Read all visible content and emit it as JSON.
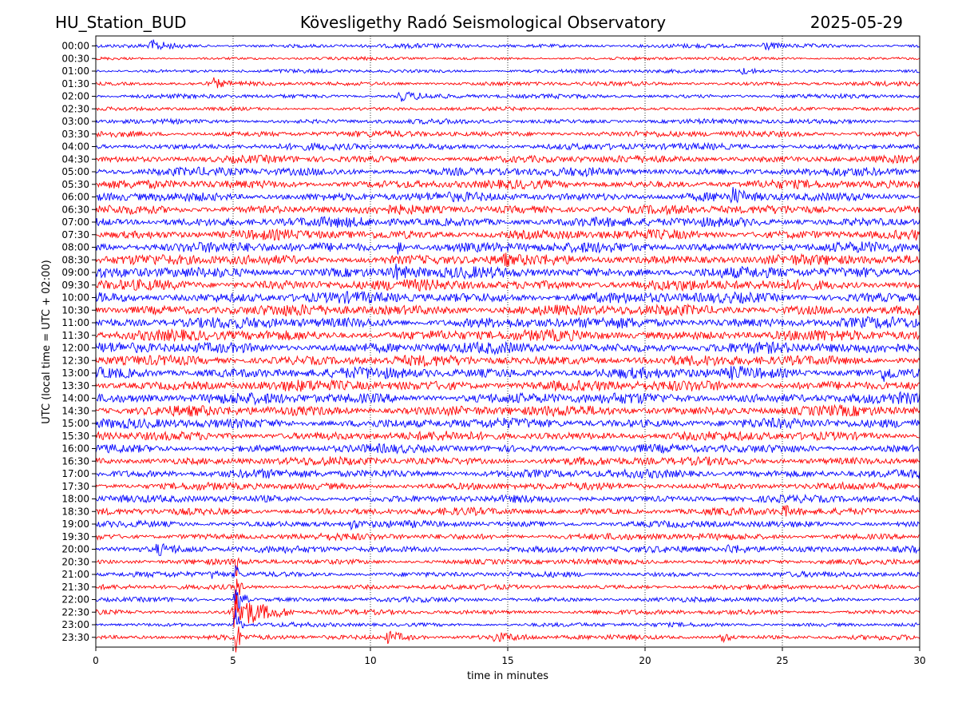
{
  "header": {
    "station": "HU_Station_BUD",
    "observatory": "Kövesligethy Radó Seismological Observatory",
    "date": "2025-05-29"
  },
  "chart_data": {
    "type": "line",
    "title": "Kövesligethy Radó Seismological Observatory",
    "xlabel": "time in minutes",
    "ylabel": "UTC (local time = UTC + 02:00)",
    "xlim": [
      0,
      30
    ],
    "xticks": [
      "0",
      "5",
      "10",
      "15",
      "20",
      "25",
      "30"
    ],
    "grid": "vertical dotted at each x tick",
    "colors": {
      "even_rows": "#0000ff",
      "odd_rows": "#ff0000"
    },
    "rows": [
      {
        "label": "00:00",
        "amplitude": 0.35,
        "events": [
          {
            "t": 2.0,
            "amp": 0.9,
            "dur": 1.2
          },
          {
            "t": 24.3,
            "amp": 0.8,
            "dur": 0.8
          }
        ]
      },
      {
        "label": "00:30",
        "amplitude": 0.25,
        "events": []
      },
      {
        "label": "01:00",
        "amplitude": 0.3,
        "events": [
          {
            "t": 23.5,
            "amp": 0.6,
            "dur": 1.5
          }
        ]
      },
      {
        "label": "01:30",
        "amplitude": 0.35,
        "events": [
          {
            "t": 4.3,
            "amp": 0.8,
            "dur": 0.6
          }
        ]
      },
      {
        "label": "02:00",
        "amplitude": 0.35,
        "events": [
          {
            "t": 11.0,
            "amp": 0.9,
            "dur": 1.8
          }
        ]
      },
      {
        "label": "02:30",
        "amplitude": 0.3,
        "events": []
      },
      {
        "label": "03:00",
        "amplitude": 0.4,
        "events": []
      },
      {
        "label": "03:30",
        "amplitude": 0.5,
        "events": []
      },
      {
        "label": "04:00",
        "amplitude": 0.55,
        "events": []
      },
      {
        "label": "04:30",
        "amplitude": 0.6,
        "events": []
      },
      {
        "label": "05:00",
        "amplitude": 0.7,
        "events": []
      },
      {
        "label": "05:30",
        "amplitude": 0.7,
        "events": []
      },
      {
        "label": "06:00",
        "amplitude": 0.75,
        "events": [
          {
            "t": 23.2,
            "amp": 1.1,
            "dur": 0.6
          }
        ]
      },
      {
        "label": "06:30",
        "amplitude": 0.75,
        "events": []
      },
      {
        "label": "07:00",
        "amplitude": 0.8,
        "events": []
      },
      {
        "label": "07:30",
        "amplitude": 0.8,
        "events": []
      },
      {
        "label": "08:00",
        "amplitude": 0.85,
        "events": [
          {
            "t": 11.0,
            "amp": 1.2,
            "dur": 0.3
          }
        ]
      },
      {
        "label": "08:30",
        "amplitude": 0.85,
        "events": [
          {
            "t": 14.8,
            "amp": 1.3,
            "dur": 0.3
          }
        ]
      },
      {
        "label": "09:00",
        "amplitude": 0.9,
        "events": [
          {
            "t": 10.8,
            "amp": 1.2,
            "dur": 1.2
          }
        ]
      },
      {
        "label": "09:30",
        "amplitude": 0.9,
        "events": []
      },
      {
        "label": "10:00",
        "amplitude": 0.9,
        "events": []
      },
      {
        "label": "10:30",
        "amplitude": 0.9,
        "events": []
      },
      {
        "label": "11:00",
        "amplitude": 0.9,
        "events": []
      },
      {
        "label": "11:30",
        "amplitude": 0.9,
        "events": []
      },
      {
        "label": "12:00",
        "amplitude": 0.9,
        "events": []
      },
      {
        "label": "12:30",
        "amplitude": 0.85,
        "events": []
      },
      {
        "label": "13:00",
        "amplitude": 0.9,
        "events": [
          {
            "t": 23.2,
            "amp": 1.3,
            "dur": 0.5
          },
          {
            "t": 28.7,
            "amp": 1.2,
            "dur": 0.5
          }
        ]
      },
      {
        "label": "13:30",
        "amplitude": 0.9,
        "events": []
      },
      {
        "label": "14:00",
        "amplitude": 0.9,
        "events": []
      },
      {
        "label": "14:30",
        "amplitude": 0.85,
        "events": []
      },
      {
        "label": "15:00",
        "amplitude": 0.8,
        "events": []
      },
      {
        "label": "15:30",
        "amplitude": 0.75,
        "events": []
      },
      {
        "label": "16:00",
        "amplitude": 0.7,
        "events": []
      },
      {
        "label": "16:30",
        "amplitude": 0.7,
        "events": []
      },
      {
        "label": "17:00",
        "amplitude": 0.7,
        "events": []
      },
      {
        "label": "17:30",
        "amplitude": 0.6,
        "events": []
      },
      {
        "label": "18:00",
        "amplitude": 0.6,
        "events": []
      },
      {
        "label": "18:30",
        "amplitude": 0.6,
        "events": [
          {
            "t": 25.0,
            "amp": 0.9,
            "dur": 0.8
          }
        ]
      },
      {
        "label": "19:00",
        "amplitude": 0.55,
        "events": [
          {
            "t": 9.3,
            "amp": 0.8,
            "dur": 0.5
          }
        ]
      },
      {
        "label": "19:30",
        "amplitude": 0.55,
        "events": []
      },
      {
        "label": "20:00",
        "amplitude": 0.55,
        "events": [
          {
            "t": 2.2,
            "amp": 0.8,
            "dur": 2.0
          },
          {
            "t": 23.0,
            "amp": 0.8,
            "dur": 2.0
          }
        ]
      },
      {
        "label": "20:30",
        "amplitude": 0.45,
        "events": [
          {
            "t": 5.1,
            "amp": 3.0,
            "dur": 0.15
          }
        ]
      },
      {
        "label": "21:00",
        "amplitude": 0.45,
        "events": [
          {
            "t": 4.2,
            "amp": 0.7,
            "dur": 0.6
          },
          {
            "t": 5.1,
            "amp": 2.5,
            "dur": 0.15
          }
        ]
      },
      {
        "label": "21:30",
        "amplitude": 0.4,
        "events": [
          {
            "t": 5.1,
            "amp": 3.0,
            "dur": 0.3
          }
        ]
      },
      {
        "label": "22:00",
        "amplitude": 0.4,
        "events": [
          {
            "t": 5.1,
            "amp": 3.0,
            "dur": 0.5
          }
        ]
      },
      {
        "label": "22:30",
        "amplitude": 0.4,
        "events": [
          {
            "t": 5.0,
            "amp": 3.5,
            "dur": 2.2
          }
        ]
      },
      {
        "label": "23:00",
        "amplitude": 0.35,
        "events": [
          {
            "t": 5.1,
            "amp": 3.0,
            "dur": 0.3
          }
        ]
      },
      {
        "label": "23:30",
        "amplitude": 0.4,
        "events": [
          {
            "t": 5.1,
            "amp": 3.5,
            "dur": 0.3
          },
          {
            "t": 10.6,
            "amp": 1.0,
            "dur": 1.5
          },
          {
            "t": 14.5,
            "amp": 0.7,
            "dur": 1.5
          },
          {
            "t": 22.8,
            "amp": 0.9,
            "dur": 0.5
          }
        ]
      }
    ]
  }
}
